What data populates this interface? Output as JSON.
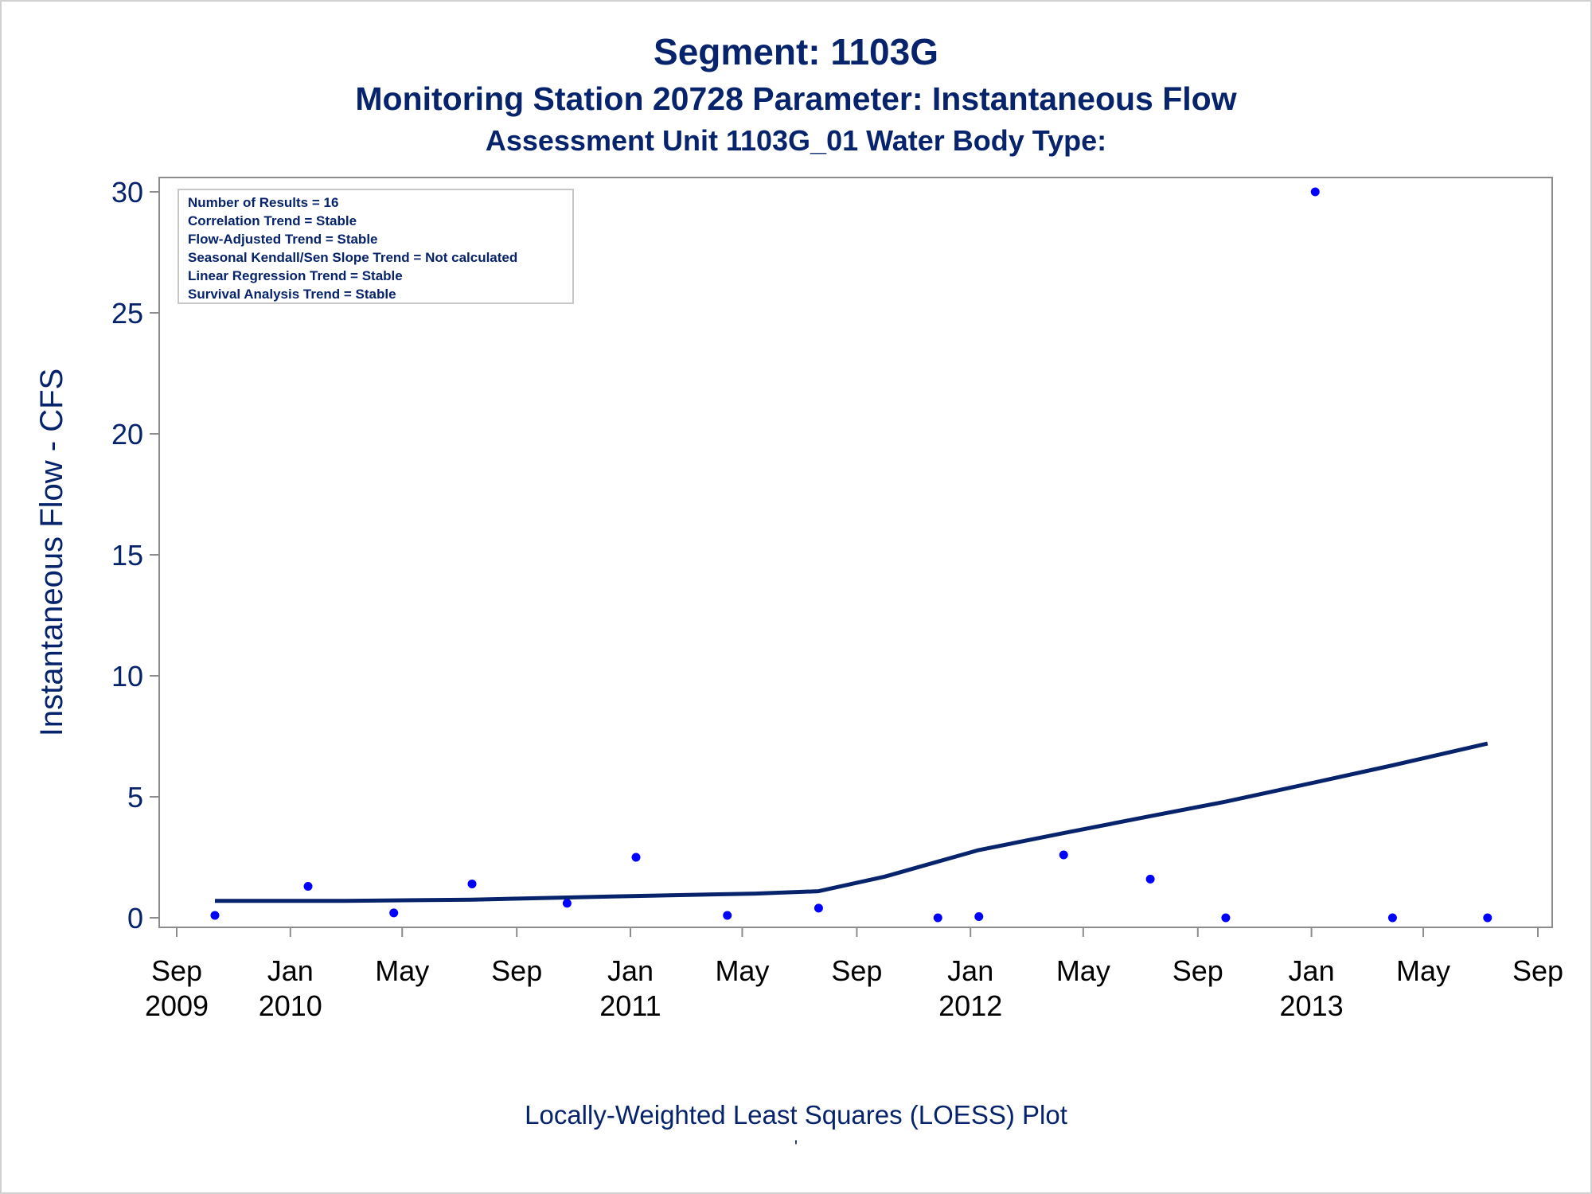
{
  "titles": {
    "line1": "Segment: 1103G",
    "line2": "Monitoring Station 20728 Parameter: Instantaneous Flow",
    "line3": "Assessment Unit 1103G_01   Water Body Type:"
  },
  "footnote": {
    "line1": "Locally-Weighted Least Squares (LOESS) Plot",
    "line2": "'"
  },
  "colors": {
    "text": "#06236b",
    "points": "#0000ff",
    "line": "#06236b",
    "axis": "#8c8c8c"
  },
  "chart_data": {
    "type": "scatter",
    "ylabel": "Instantaneous Flow - CFS",
    "xlabel": "",
    "ylim": [
      0,
      30
    ],
    "yticks": [
      0,
      5,
      10,
      15,
      20,
      25,
      30
    ],
    "xlim": [
      "2009-09-01",
      "2013-09-01"
    ],
    "xticks": [
      {
        "date": "2009-09-01",
        "month": "Sep",
        "year": "2009"
      },
      {
        "date": "2010-01-01",
        "month": "Jan",
        "year": "2010"
      },
      {
        "date": "2010-05-01",
        "month": "May",
        "year": ""
      },
      {
        "date": "2010-09-01",
        "month": "Sep",
        "year": ""
      },
      {
        "date": "2011-01-01",
        "month": "Jan",
        "year": "2011"
      },
      {
        "date": "2011-05-01",
        "month": "May",
        "year": ""
      },
      {
        "date": "2011-09-01",
        "month": "Sep",
        "year": ""
      },
      {
        "date": "2012-01-01",
        "month": "Jan",
        "year": "2012"
      },
      {
        "date": "2012-05-01",
        "month": "May",
        "year": ""
      },
      {
        "date": "2012-09-01",
        "month": "Sep",
        "year": ""
      },
      {
        "date": "2013-01-01",
        "month": "Jan",
        "year": "2013"
      },
      {
        "date": "2013-05-01",
        "month": "May",
        "year": ""
      },
      {
        "date": "2013-09-01",
        "month": "Sep",
        "year": ""
      }
    ],
    "legend_box": {
      "position": "top-left",
      "lines": [
        "Number of Results = 16",
        "Correlation Trend = Stable",
        "Flow-Adjusted Trend = Stable",
        "Seasonal Kendall/Sen Slope Trend = Not calculated",
        "Linear Regression Trend = Stable",
        "Survival Analysis Trend = Stable"
      ]
    },
    "points": [
      {
        "x": "2009-10-12",
        "y": 0.1
      },
      {
        "x": "2010-01-20",
        "y": 1.3
      },
      {
        "x": "2010-04-22",
        "y": 0.2
      },
      {
        "x": "2010-07-15",
        "y": 1.4
      },
      {
        "x": "2010-10-25",
        "y": 0.6
      },
      {
        "x": "2011-01-07",
        "y": 2.5
      },
      {
        "x": "2011-04-15",
        "y": 0.1
      },
      {
        "x": "2011-07-22",
        "y": 0.4
      },
      {
        "x": "2011-11-27",
        "y": 0.0
      },
      {
        "x": "2012-01-10",
        "y": 0.05
      },
      {
        "x": "2012-04-10",
        "y": 2.6
      },
      {
        "x": "2012-07-12",
        "y": 1.6
      },
      {
        "x": "2012-10-01",
        "y": 0.0
      },
      {
        "x": "2013-01-05",
        "y": 30.0
      },
      {
        "x": "2013-03-29",
        "y": 0.0
      },
      {
        "x": "2013-07-09",
        "y": 0.0
      }
    ],
    "loess": [
      {
        "x": "2009-10-12",
        "y": 0.7
      },
      {
        "x": "2010-03-01",
        "y": 0.7
      },
      {
        "x": "2010-07-15",
        "y": 0.75
      },
      {
        "x": "2011-01-07",
        "y": 0.9
      },
      {
        "x": "2011-05-15",
        "y": 1.0
      },
      {
        "x": "2011-07-22",
        "y": 1.1
      },
      {
        "x": "2011-10-01",
        "y": 1.7
      },
      {
        "x": "2012-01-10",
        "y": 2.8
      },
      {
        "x": "2012-04-10",
        "y": 3.5
      },
      {
        "x": "2012-07-12",
        "y": 4.2
      },
      {
        "x": "2012-10-01",
        "y": 4.8
      },
      {
        "x": "2013-01-05",
        "y": 5.6
      },
      {
        "x": "2013-03-29",
        "y": 6.3
      },
      {
        "x": "2013-07-09",
        "y": 7.2
      }
    ]
  }
}
